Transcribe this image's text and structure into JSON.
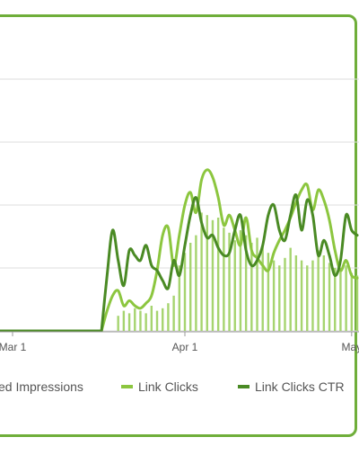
{
  "chart_data": {
    "type": "line",
    "x_ticks": [
      "Mar 1",
      "Apr 1",
      "May"
    ],
    "ylim": [
      0,
      100
    ],
    "grid": true,
    "legend_position": "bottom",
    "series": [
      {
        "name": "Paid Impressions",
        "legend_label": "ed Impressions",
        "render": "bar",
        "color": "#a6d46f",
        "x": [
          "Mar 20",
          "Mar 21",
          "Mar 22",
          "Mar 23",
          "Mar 24",
          "Mar 25",
          "Mar 26",
          "Mar 27",
          "Mar 28",
          "Mar 29",
          "Mar 30",
          "Mar 31",
          "Apr 1",
          "Apr 2",
          "Apr 3",
          "Apr 4",
          "Apr 5",
          "Apr 6",
          "Apr 7",
          "Apr 8",
          "Apr 9",
          "Apr 10",
          "Apr 11",
          "Apr 12",
          "Apr 13",
          "Apr 14",
          "Apr 15",
          "Apr 16",
          "Apr 17",
          "Apr 18",
          "Apr 19",
          "Apr 20",
          "Apr 21",
          "Apr 22",
          "Apr 23",
          "Apr 24",
          "Apr 25",
          "Apr 26",
          "Apr 27",
          "Apr 28",
          "Apr 29",
          "Apr 30",
          "May 1",
          "May 2"
        ],
        "values": [
          6,
          8,
          7,
          9,
          8,
          7,
          10,
          8,
          9,
          11,
          14,
          26,
          31,
          35,
          38,
          47,
          46,
          44,
          45,
          41,
          39,
          36,
          40,
          38,
          35,
          37,
          34,
          31,
          28,
          26,
          29,
          33,
          30,
          28,
          26,
          28,
          32,
          30,
          27,
          25,
          24,
          26,
          23,
          22
        ]
      },
      {
        "name": "Link Clicks",
        "render": "line",
        "color": "#8cc63f",
        "x": [
          "Mar 17",
          "Mar 18",
          "Mar 19",
          "Mar 20",
          "Mar 21",
          "Mar 22",
          "Mar 23",
          "Mar 24",
          "Mar 25",
          "Mar 26",
          "Mar 27",
          "Mar 28",
          "Mar 29",
          "Mar 30",
          "Mar 31",
          "Apr 1",
          "Apr 2",
          "Apr 3",
          "Apr 4",
          "Apr 5",
          "Apr 6",
          "Apr 7",
          "Apr 8",
          "Apr 9",
          "Apr 10",
          "Apr 11",
          "Apr 12",
          "Apr 13",
          "Apr 14",
          "Apr 15",
          "Apr 16",
          "Apr 17",
          "Apr 18",
          "Apr 19",
          "Apr 20",
          "Apr 21",
          "Apr 22",
          "Apr 23",
          "Apr 24",
          "Apr 25",
          "Apr 26",
          "Apr 27",
          "Apr 28",
          "Apr 29",
          "Apr 30",
          "May 1",
          "May 2"
        ],
        "values": [
          0,
          8,
          14,
          16,
          10,
          12,
          10,
          9,
          11,
          14,
          24,
          38,
          41,
          26,
          38,
          50,
          55,
          47,
          60,
          64,
          61,
          53,
          42,
          46,
          40,
          34,
          45,
          32,
          29,
          26,
          24,
          31,
          36,
          40,
          45,
          51,
          56,
          58,
          48,
          56,
          52,
          44,
          32,
          24,
          28,
          22,
          21
        ]
      },
      {
        "name": "Link Clicks CTR",
        "legend_label": "Link Clicks CTR",
        "render": "line",
        "color": "#4a8a24",
        "x": [
          "Mar 17",
          "Mar 18",
          "Mar 19",
          "Mar 20",
          "Mar 21",
          "Mar 22",
          "Mar 23",
          "Mar 24",
          "Mar 25",
          "Mar 26",
          "Mar 27",
          "Mar 28",
          "Mar 29",
          "Mar 30",
          "Mar 31",
          "Apr 1",
          "Apr 2",
          "Apr 3",
          "Apr 4",
          "Apr 5",
          "Apr 6",
          "Apr 7",
          "Apr 8",
          "Apr 9",
          "Apr 10",
          "Apr 11",
          "Apr 12",
          "Apr 13",
          "Apr 14",
          "Apr 15",
          "Apr 16",
          "Apr 17",
          "Apr 18",
          "Apr 19",
          "Apr 20",
          "Apr 21",
          "Apr 22",
          "Apr 23",
          "Apr 24",
          "Apr 25",
          "Apr 26",
          "Apr 27",
          "Apr 28",
          "Apr 29",
          "Apr 30",
          "May 1",
          "May 2"
        ],
        "values": [
          0,
          22,
          40,
          28,
          18,
          32,
          30,
          28,
          34,
          26,
          24,
          20,
          17,
          28,
          22,
          34,
          46,
          53,
          43,
          37,
          38,
          33,
          30,
          31,
          40,
          46,
          32,
          26,
          28,
          34,
          46,
          50,
          40,
          36,
          46,
          54,
          40,
          52,
          46,
          30,
          36,
          30,
          22,
          28,
          46,
          40,
          38
        ]
      }
    ]
  }
}
